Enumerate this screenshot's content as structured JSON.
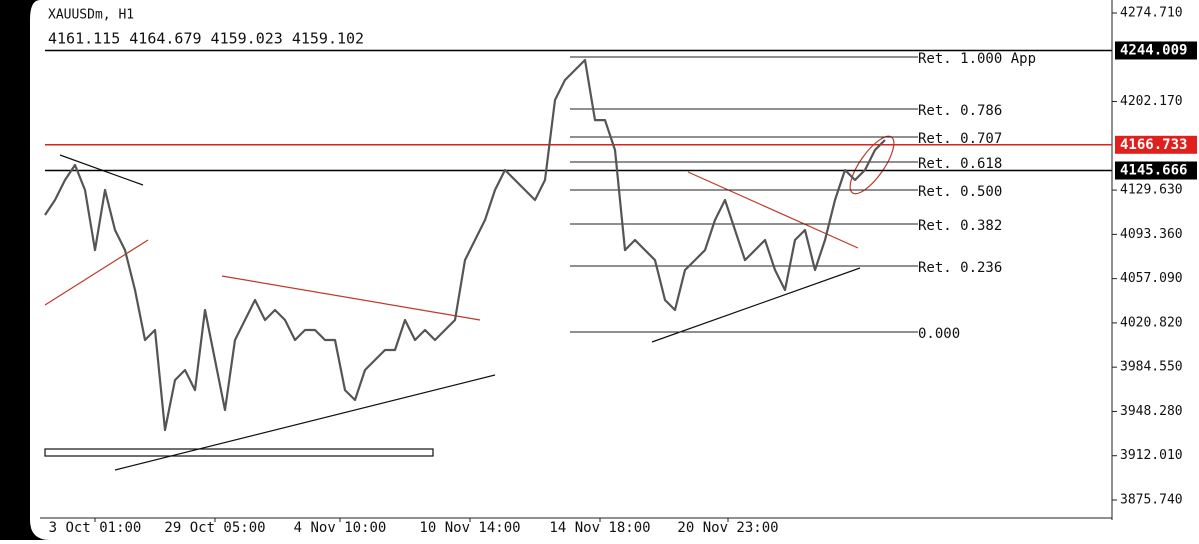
{
  "chart_data": {
    "type": "line",
    "title": "XAUUSDm, H1",
    "ohlc_text": "4161.115 4164.679 4159.023 4159.102",
    "x": [
      0,
      1,
      2,
      3,
      4,
      5,
      6,
      7,
      8,
      9,
      10,
      11,
      12,
      13,
      14,
      15,
      16,
      17,
      18,
      19,
      20,
      21,
      22,
      23,
      24,
      25,
      26,
      27,
      28,
      29,
      30,
      31,
      32,
      33,
      34,
      35,
      36,
      37,
      38,
      39,
      40,
      41,
      42,
      43,
      44,
      45,
      46,
      47,
      48,
      49,
      50,
      51,
      52,
      53,
      54,
      55,
      56,
      57,
      58,
      59,
      60,
      61,
      62,
      63,
      64,
      65,
      66,
      67,
      68,
      69,
      70,
      71,
      72,
      73,
      74,
      75,
      76,
      77,
      78,
      79,
      80,
      81,
      82,
      83,
      84
    ],
    "series": [
      {
        "name": "XAUUSDm",
        "color": "#555555",
        "values": [
          4109.2,
          4121.5,
          4137.9,
          4150.2,
          4129.7,
          4080.5,
          4129.7,
          4096.9,
          4080.5,
          4047.8,
          4006.8,
          4015.0,
          3933.1,
          3974.0,
          3982.2,
          3965.8,
          4031.4,
          3990.4,
          3949.5,
          4006.8,
          4023.2,
          4039.6,
          4023.2,
          4031.4,
          4023.2,
          4006.8,
          4015.0,
          4015.0,
          4006.8,
          4006.8,
          3965.8,
          3957.7,
          3982.2,
          3990.4,
          3998.6,
          3998.6,
          4023.2,
          4006.8,
          4015.0,
          4006.8,
          4015.0,
          4023.2,
          4072.3,
          4088.7,
          4105.1,
          4129.7,
          4146.1,
          4137.9,
          4129.7,
          4121.5,
          4137.9,
          4203.4,
          4219.8,
          4228.0,
          4236.2,
          4187.0,
          4187.0,
          4162.5,
          4080.5,
          4088.7,
          4080.5,
          4072.3,
          4039.6,
          4031.4,
          4064.2,
          4072.3,
          4080.5,
          4105.1,
          4121.5,
          4096.9,
          4072.3,
          4080.5,
          4088.7,
          4064.2,
          4047.8,
          4088.7,
          4096.9,
          4064.2,
          4088.7,
          4121.5,
          4146.1,
          4137.9,
          4146.1,
          4162.5,
          4170.7
        ]
      }
    ],
    "xlim": [
      0,
      106.7
    ],
    "xticks": [
      {
        "value": 5,
        "label": "3 Oct 01:00"
      },
      {
        "value": 17,
        "label": "29 Oct 05:00"
      },
      {
        "value": 29.5,
        "label": "4 Nov 10:00"
      },
      {
        "value": 42.5,
        "label": "10 Nov 14:00"
      },
      {
        "value": 55.5,
        "label": "14 Nov 18:00"
      },
      {
        "value": 68.3,
        "label": "20 Nov 23:00"
      }
    ],
    "ylim": [
      3859.35,
      4285.36
    ],
    "yticks": [
      {
        "value": 4274.71,
        "label": "4274.710"
      },
      {
        "value": 4202.17,
        "label": "4202.170"
      },
      {
        "value": 4129.63,
        "label": "4129.630"
      },
      {
        "value": 4093.36,
        "label": "4093.360"
      },
      {
        "value": 4057.09,
        "label": "4057.090"
      },
      {
        "value": 4020.82,
        "label": "4020.820"
      },
      {
        "value": 3984.55,
        "label": "3984.550"
      },
      {
        "value": 3948.28,
        "label": "3948.280"
      },
      {
        "value": 3912.01,
        "label": "3912.010"
      },
      {
        "value": 3875.74,
        "label": "3875.740"
      }
    ],
    "price_labels": [
      {
        "value": 4244.009,
        "color": "#000000"
      },
      {
        "value": 4166.733,
        "color": "#e0201c"
      },
      {
        "value": 4145.666,
        "color": "#000000"
      }
    ],
    "fib_levels": [
      {
        "label": "Ret. 1.000 App",
        "value": 4238.7
      },
      {
        "label": "Ret. 0.786",
        "value": 4196.1
      },
      {
        "label": "Ret. 0.707",
        "value": 4173.1
      },
      {
        "label": "Ret. 0.618",
        "value": 4152.6
      },
      {
        "label": "Ret. 0.500",
        "value": 4129.7
      },
      {
        "label": "Ret. 0.382",
        "value": 4101.8
      },
      {
        "label": "Ret. 0.236",
        "value": 4067.4
      },
      {
        "label": "0.000",
        "value": 4013.4
      }
    ]
  }
}
